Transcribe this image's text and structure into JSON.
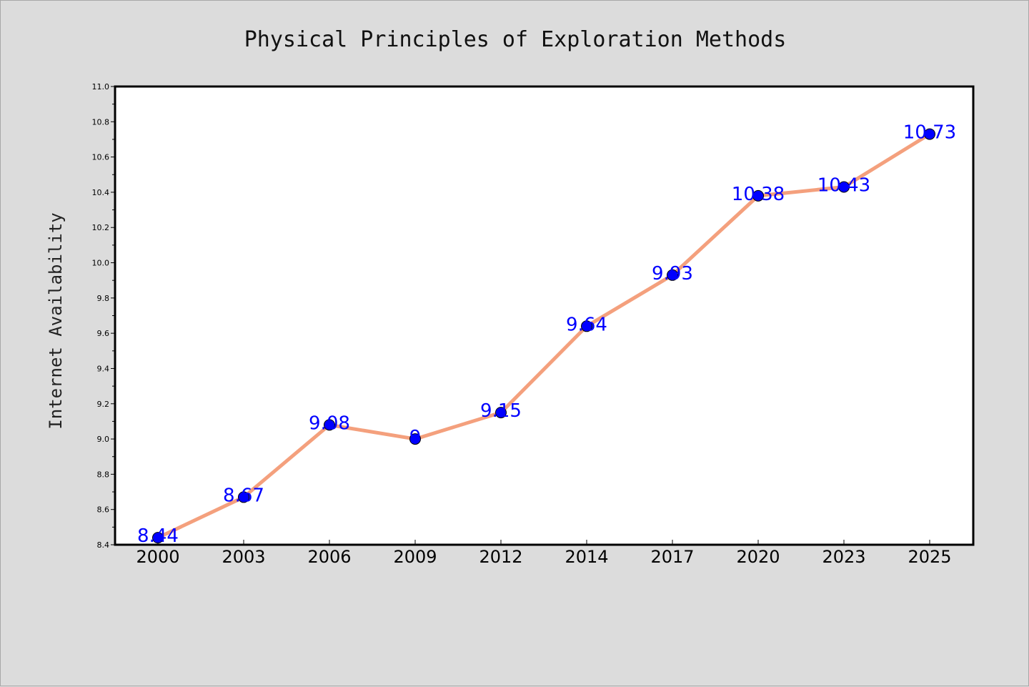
{
  "chart_data": {
    "type": "line",
    "title": "Physical Principles of Exploration Methods",
    "xlabel": "",
    "ylabel": "Internet Availability",
    "categories": [
      "2000",
      "2003",
      "2006",
      "2009",
      "2012",
      "2014",
      "2017",
      "2020",
      "2023",
      "2025"
    ],
    "series": [
      {
        "values": [
          8.44,
          8.67,
          9.08,
          9,
          9.15,
          9.64,
          9.93,
          10.38,
          10.43,
          10.73
        ],
        "labels": [
          "8.44",
          "8.67",
          "9.08",
          "9",
          "9.15",
          "9.64",
          "9.93",
          "10.38",
          "10.43",
          "10.73"
        ],
        "line_color": "#f4a07d",
        "marker_color": "#0000ff"
      }
    ],
    "ylim": [
      8.4,
      11.0
    ],
    "yticks": [
      "8.4",
      "8.6",
      "8.8",
      "9.0",
      "9.2",
      "9.4",
      "9.6",
      "9.8",
      "10.0",
      "10.2",
      "10.4",
      "10.6",
      "10.8",
      "11.0"
    ],
    "grid": false,
    "label_color": "#0000ff",
    "background_color": "#dcdcdc",
    "plot_background_color": "#ffffff"
  }
}
